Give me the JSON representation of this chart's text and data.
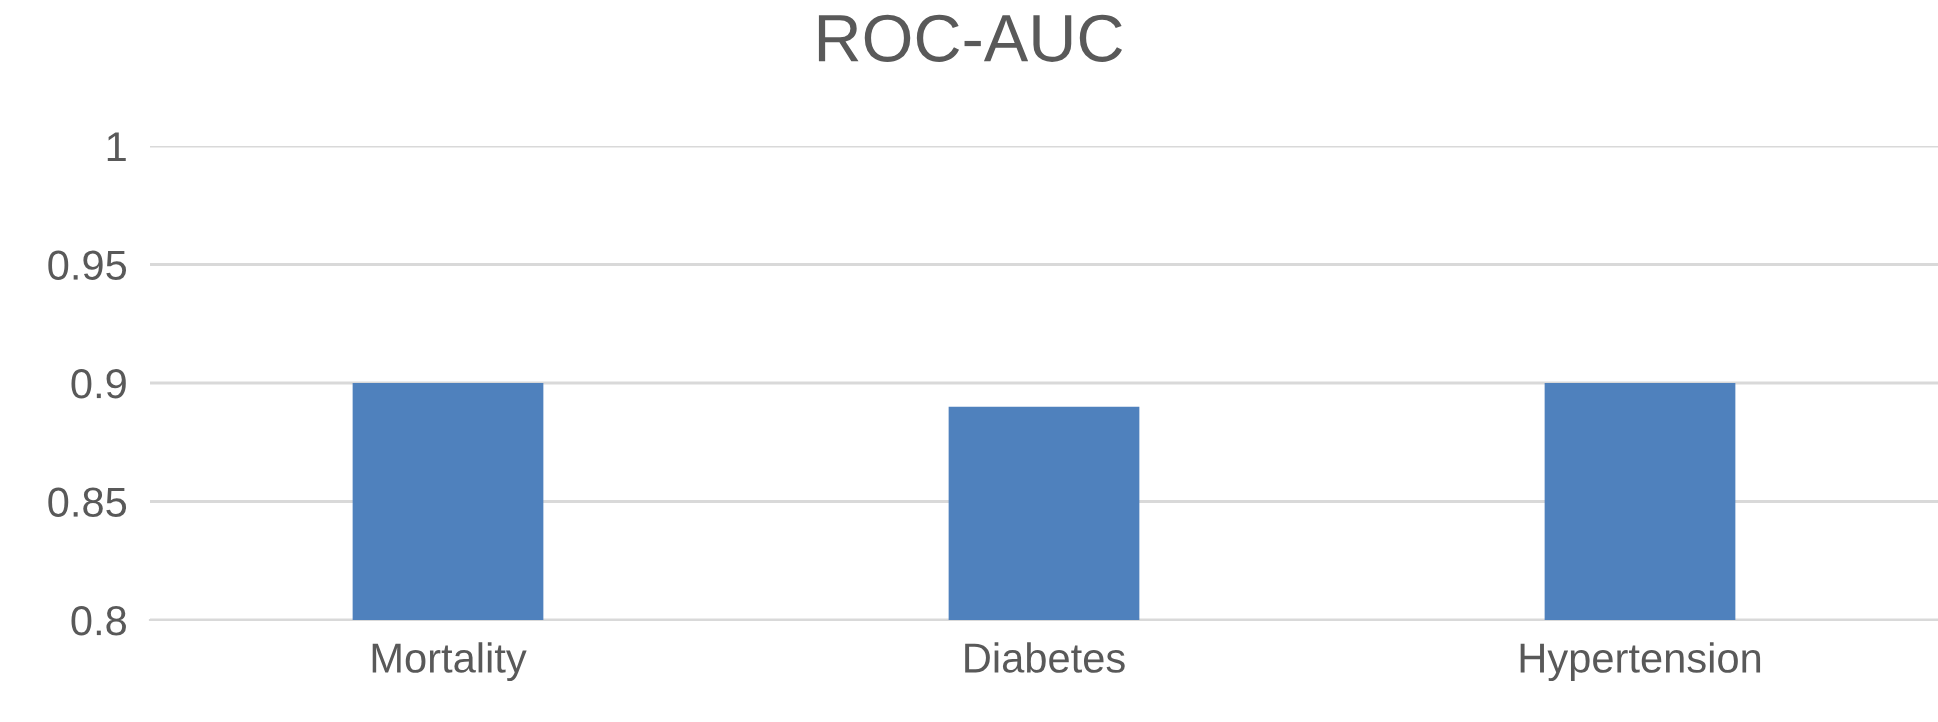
{
  "chart_data": {
    "type": "bar",
    "title": "ROC-AUC",
    "categories": [
      "Mortality",
      "Diabetes",
      "Hypertension"
    ],
    "values": [
      0.9,
      0.89,
      0.9
    ],
    "color": "#4f81bd",
    "ylim": [
      0.8,
      1
    ],
    "yticks": [
      0.8,
      0.85,
      0.9,
      0.95,
      1
    ],
    "grid": "y",
    "legend": false
  }
}
